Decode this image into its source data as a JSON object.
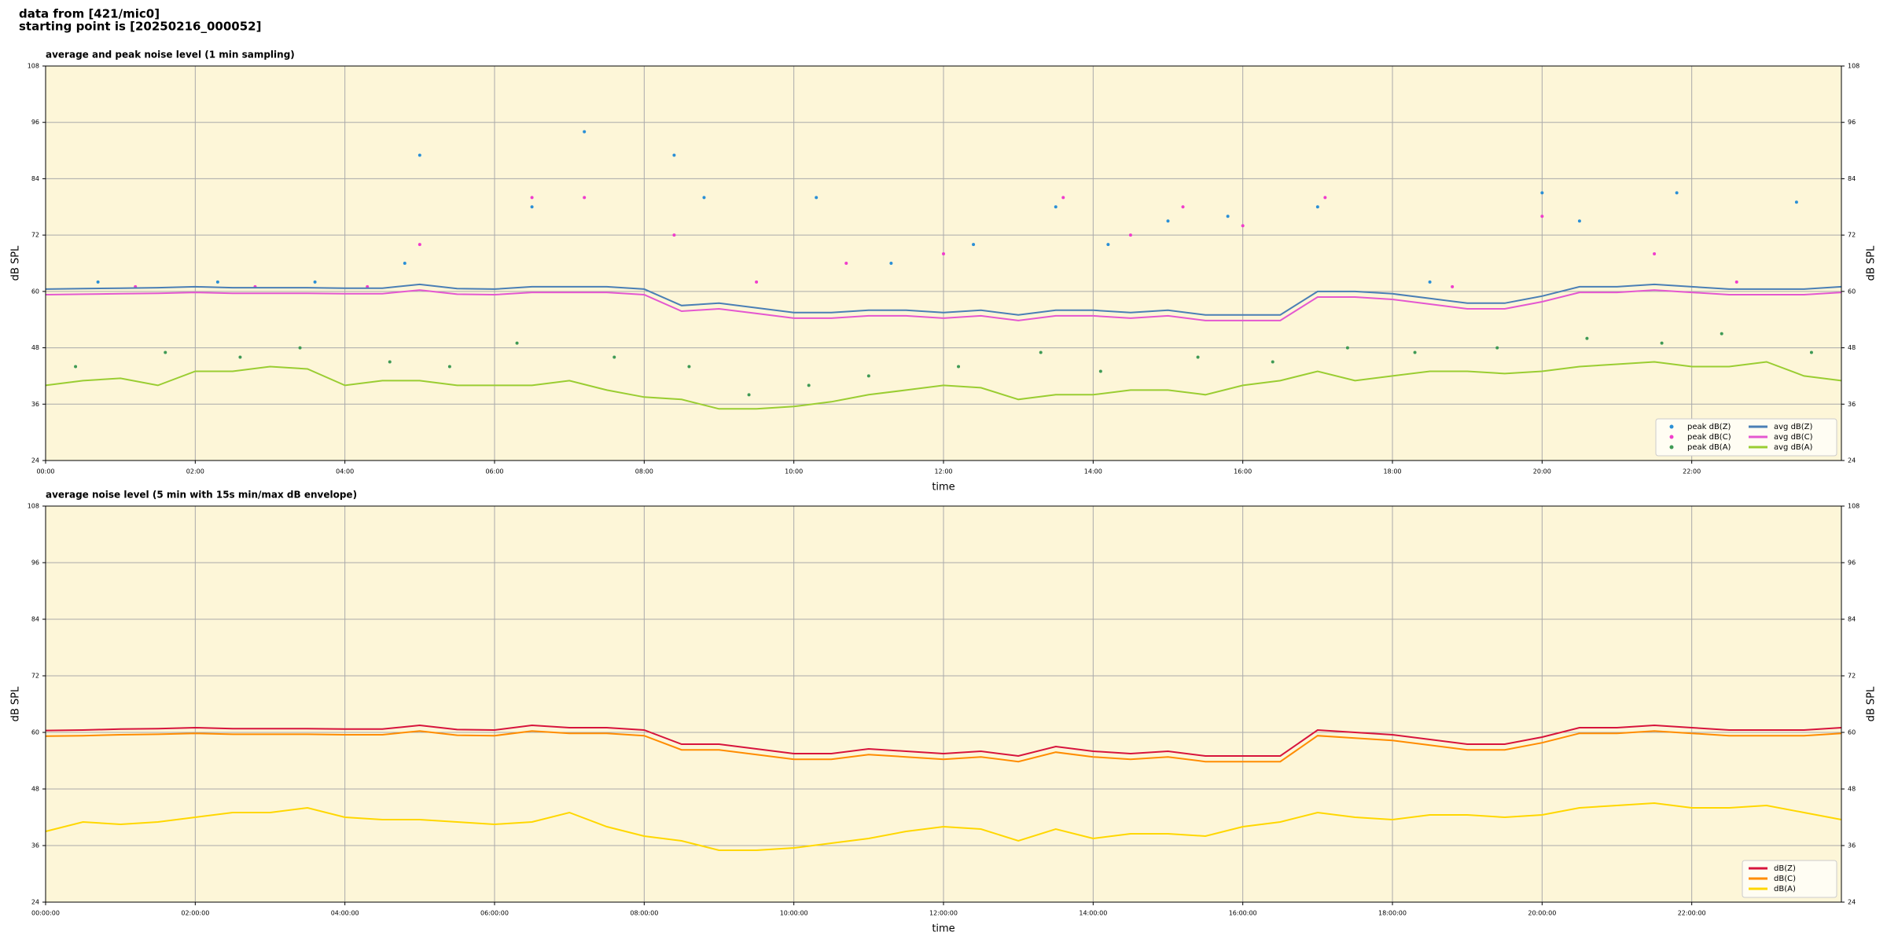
{
  "header": {
    "line1": "data from [421/mic0]",
    "line2": "starting point is [20250216_000052]"
  },
  "chart_data": [
    {
      "type": "line",
      "title": "average and peak noise level (1 min sampling)",
      "x_label": "time",
      "y_label": "dB SPL",
      "y2_label": "dB SPL",
      "xlim": [
        0,
        24
      ],
      "ylim": [
        24,
        108
      ],
      "yticks": [
        24,
        36,
        48,
        60,
        72,
        84,
        96,
        108
      ],
      "xticks": [
        {
          "value": 0,
          "label": "00:00"
        },
        {
          "value": 2,
          "label": "02:00"
        },
        {
          "value": 4,
          "label": "04:00"
        },
        {
          "value": 6,
          "label": "06:00"
        },
        {
          "value": 8,
          "label": "08:00"
        },
        {
          "value": 10,
          "label": "10:00"
        },
        {
          "value": 12,
          "label": "12:00"
        },
        {
          "value": 14,
          "label": "14:00"
        },
        {
          "value": 16,
          "label": "16:00"
        },
        {
          "value": 18,
          "label": "18:00"
        },
        {
          "value": 20,
          "label": "20:00"
        },
        {
          "value": 22,
          "label": "22:00"
        }
      ],
      "grid": true,
      "background": "#fdf6d8",
      "legend": "lower right",
      "legend_columns": 2,
      "x": [
        0,
        0.5,
        1,
        1.5,
        2,
        2.5,
        3,
        3.5,
        4,
        4.5,
        5,
        5.5,
        6,
        6.5,
        7,
        7.5,
        8,
        8.5,
        9,
        9.5,
        10,
        10.5,
        11,
        11.5,
        12,
        12.5,
        13,
        13.5,
        14,
        14.5,
        15,
        15.5,
        16,
        16.5,
        17,
        17.5,
        18,
        18.5,
        19,
        19.5,
        20,
        20.5,
        21,
        21.5,
        22,
        22.5,
        23,
        23.5,
        24
      ],
      "series": [
        {
          "name": "peak dB(Z)",
          "type": "scatter",
          "color": "#2a8fd6",
          "x": [
            0.7,
            2.3,
            3.6,
            4.8,
            5,
            6.5,
            7.2,
            8.4,
            8.8,
            10.3,
            11.3,
            12.4,
            13.5,
            14.2,
            15,
            15.8,
            17,
            18.5,
            20,
            20.5,
            21.8,
            23.4
          ],
          "values": [
            62,
            62,
            62,
            66,
            89,
            78,
            94,
            89,
            80,
            80,
            66,
            70,
            78,
            70,
            75,
            76,
            78,
            62,
            81,
            75,
            81,
            79
          ]
        },
        {
          "name": "peak dB(C)",
          "type": "scatter",
          "color": "#f03ccc",
          "x": [
            1.2,
            2.8,
            4.3,
            5,
            6.5,
            7.2,
            8.4,
            9.5,
            10.7,
            12,
            13.6,
            14.5,
            15.2,
            16,
            17.1,
            18.8,
            20,
            21.5,
            22.6
          ],
          "values": [
            61,
            61,
            61,
            70,
            80,
            80,
            72,
            62,
            66,
            68,
            80,
            72,
            78,
            74,
            80,
            61,
            76,
            68,
            62
          ]
        },
        {
          "name": "peak dB(A)",
          "type": "scatter",
          "color": "#3f9a55",
          "x": [
            0.4,
            1.6,
            2.6,
            3.4,
            4.6,
            5.4,
            6.3,
            7.6,
            8.6,
            9.4,
            10.2,
            11,
            12.2,
            13.3,
            14.1,
            15.4,
            16.4,
            17.4,
            18.3,
            19.4,
            20.6,
            21.6,
            22.4,
            23.6
          ],
          "values": [
            44,
            47,
            46,
            48,
            45,
            44,
            49,
            46,
            44,
            38,
            40,
            42,
            44,
            47,
            43,
            46,
            45,
            48,
            47,
            48,
            50,
            49,
            51,
            47
          ]
        },
        {
          "name": "avg dB(Z)",
          "type": "line",
          "color": "#4a7fb5",
          "values": [
            60.5,
            60.6,
            60.7,
            60.8,
            61,
            60.8,
            60.8,
            60.8,
            60.7,
            60.7,
            61.5,
            60.6,
            60.5,
            61,
            61,
            61,
            60.5,
            57,
            57.5,
            56.5,
            55.5,
            55.5,
            56,
            56,
            55.5,
            56,
            55,
            56,
            56,
            55.5,
            56,
            55,
            55,
            55,
            60,
            60,
            59.5,
            58.5,
            57.5,
            57.5,
            59,
            61,
            61,
            61.5,
            61,
            60.5,
            60.5,
            60.5,
            61
          ]
        },
        {
          "name": "avg dB(C)",
          "type": "line",
          "color": "#e457d0",
          "values": [
            59.3,
            59.4,
            59.5,
            59.6,
            59.8,
            59.6,
            59.6,
            59.6,
            59.5,
            59.5,
            60.3,
            59.4,
            59.3,
            59.8,
            59.8,
            59.8,
            59.3,
            55.8,
            56.3,
            55.3,
            54.3,
            54.3,
            54.8,
            54.8,
            54.3,
            54.8,
            53.8,
            54.8,
            54.8,
            54.3,
            54.8,
            53.8,
            53.8,
            53.8,
            58.8,
            58.8,
            58.3,
            57.3,
            56.3,
            56.3,
            57.8,
            59.8,
            59.8,
            60.3,
            59.8,
            59.3,
            59.3,
            59.3,
            59.8
          ]
        },
        {
          "name": "avg dB(A)",
          "type": "line",
          "color": "#9acd32",
          "values": [
            40,
            41,
            41.5,
            40,
            43,
            43,
            44,
            43.5,
            40,
            41,
            41,
            40,
            40,
            40,
            41,
            39,
            37.5,
            37,
            35,
            35,
            35.5,
            36.5,
            38,
            39,
            40,
            39.5,
            37,
            38,
            38,
            39,
            39,
            38,
            40,
            41,
            43,
            41,
            42,
            43,
            43,
            42.5,
            43,
            44,
            44.5,
            45,
            44,
            44,
            45,
            42,
            41
          ]
        }
      ]
    },
    {
      "type": "line",
      "title": "average noise level (5 min with 15s min/max dB envelope)",
      "x_label": "time",
      "y_label": "dB SPL",
      "y2_label": "dB SPL",
      "xlim": [
        0,
        24
      ],
      "ylim": [
        24,
        108
      ],
      "yticks": [
        24,
        36,
        48,
        60,
        72,
        84,
        96,
        108
      ],
      "xticks": [
        {
          "value": 0,
          "label": "00:00:00"
        },
        {
          "value": 2,
          "label": "02:00:00"
        },
        {
          "value": 4,
          "label": "04:00:00"
        },
        {
          "value": 6,
          "label": "06:00:00"
        },
        {
          "value": 8,
          "label": "08:00:00"
        },
        {
          "value": 10,
          "label": "10:00:00"
        },
        {
          "value": 12,
          "label": "12:00:00"
        },
        {
          "value": 14,
          "label": "14:00:00"
        },
        {
          "value": 16,
          "label": "16:00:00"
        },
        {
          "value": 18,
          "label": "18:00:00"
        },
        {
          "value": 20,
          "label": "20:00:00"
        },
        {
          "value": 22,
          "label": "22:00:00"
        }
      ],
      "grid": true,
      "background": "#fdf6d8",
      "legend": "lower right",
      "legend_columns": 1,
      "x": [
        0,
        0.5,
        1,
        1.5,
        2,
        2.5,
        3,
        3.5,
        4,
        4.5,
        5,
        5.5,
        6,
        6.5,
        7,
        7.5,
        8,
        8.5,
        9,
        9.5,
        10,
        10.5,
        11,
        11.5,
        12,
        12.5,
        13,
        13.5,
        14,
        14.5,
        15,
        15.5,
        16,
        16.5,
        17,
        17.5,
        18,
        18.5,
        19,
        19.5,
        20,
        20.5,
        21,
        21.5,
        22,
        22.5,
        23,
        23.5,
        24
      ],
      "series": [
        {
          "name": "dB(Z)",
          "type": "line",
          "color": "#d7143c",
          "values": [
            60.4,
            60.5,
            60.7,
            60.8,
            61,
            60.8,
            60.8,
            60.8,
            60.7,
            60.7,
            61.5,
            60.6,
            60.5,
            61.5,
            61,
            61,
            60.5,
            57.5,
            57.5,
            56.5,
            55.5,
            55.5,
            56.5,
            56,
            55.5,
            56,
            55,
            57,
            56,
            55.5,
            56,
            55,
            55,
            55,
            60.5,
            60,
            59.5,
            58.5,
            57.5,
            57.5,
            59,
            61,
            61,
            61.5,
            61,
            60.5,
            60.5,
            60.5,
            61
          ]
        },
        {
          "name": "dB(C)",
          "type": "line",
          "color": "#ff8c00",
          "values": [
            59.2,
            59.3,
            59.5,
            59.6,
            59.8,
            59.6,
            59.6,
            59.6,
            59.5,
            59.5,
            60.3,
            59.4,
            59.3,
            60.3,
            59.8,
            59.8,
            59.3,
            56.3,
            56.3,
            55.3,
            54.3,
            54.3,
            55.3,
            54.8,
            54.3,
            54.8,
            53.8,
            55.8,
            54.8,
            54.3,
            54.8,
            53.8,
            53.8,
            53.8,
            59.3,
            58.8,
            58.3,
            57.3,
            56.3,
            56.3,
            57.8,
            59.8,
            59.8,
            60.3,
            59.8,
            59.3,
            59.3,
            59.3,
            59.8
          ]
        },
        {
          "name": "dB(A)",
          "type": "line",
          "color": "#ffd700",
          "values": [
            39,
            41,
            40.5,
            41,
            42,
            43,
            43,
            44,
            42,
            41.5,
            41.5,
            41,
            40.5,
            41,
            43,
            40,
            38,
            37,
            35,
            35,
            35.5,
            36.5,
            37.5,
            39,
            40,
            39.5,
            37,
            39.5,
            37.5,
            38.5,
            38.5,
            38,
            40,
            41,
            43,
            42,
            41.5,
            42.5,
            42.5,
            42,
            42.5,
            44,
            44.5,
            45,
            44,
            44,
            44.5,
            43,
            41.5
          ]
        }
      ]
    }
  ]
}
